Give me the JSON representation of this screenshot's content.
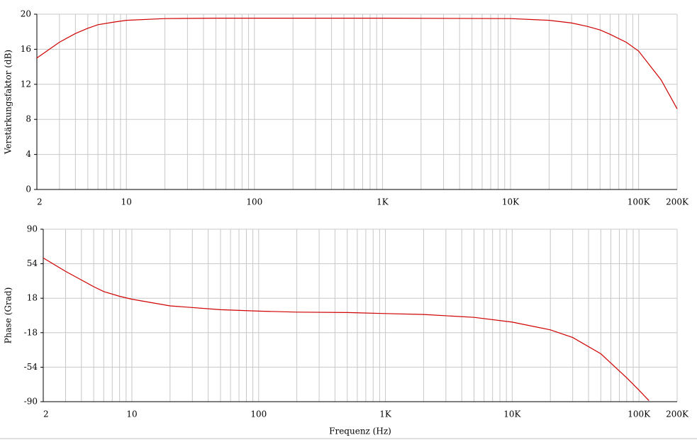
{
  "chart_data": [
    {
      "type": "line",
      "ylabel": "Verstärkungsfaktor (dB)",
      "xscale": "log",
      "grid": true,
      "color": "#d00000",
      "x": [
        2,
        3,
        4,
        5,
        6,
        8,
        10,
        20,
        50,
        100,
        1000,
        10000,
        20000,
        30000,
        40000,
        50000,
        60000,
        80000,
        100000,
        150000,
        200000
      ],
      "values": [
        15.0,
        16.8,
        17.8,
        18.4,
        18.8,
        19.1,
        19.3,
        19.5,
        19.55,
        19.55,
        19.55,
        19.5,
        19.3,
        19.0,
        18.6,
        18.2,
        17.7,
        16.8,
        15.8,
        12.5,
        9.2
      ],
      "xlim": [
        2,
        200000
      ],
      "ylim": [
        0,
        20
      ],
      "xticks": [
        2,
        10,
        100,
        {
          "value": 1000,
          "label": "1K"
        },
        {
          "value": 10000,
          "label": "10K"
        },
        {
          "value": 100000,
          "label": "100K"
        },
        {
          "value": 200000,
          "label": "200K"
        }
      ],
      "minor_xticks": [
        3,
        4,
        5,
        6,
        7,
        8,
        9,
        20,
        30,
        40,
        50,
        60,
        70,
        80,
        90,
        200,
        300,
        400,
        500,
        600,
        700,
        800,
        900,
        2000,
        3000,
        4000,
        5000,
        6000,
        7000,
        8000,
        9000,
        20000,
        30000,
        40000,
        50000,
        60000,
        70000,
        80000,
        90000
      ],
      "yticks": [
        0,
        4,
        8,
        12,
        16,
        20
      ]
    },
    {
      "type": "line",
      "ylabel": "Phase (Grad)",
      "xlabel": "Frequenz (Hz)",
      "xscale": "log",
      "grid": true,
      "color": "#d00000",
      "x": [
        2,
        3,
        4,
        5,
        6,
        8,
        10,
        20,
        50,
        100,
        200,
        500,
        1000,
        2000,
        5000,
        10000,
        20000,
        30000,
        50000,
        80000,
        100000,
        120000
      ],
      "values": [
        60,
        46,
        37,
        30,
        25,
        20,
        17,
        10,
        6,
        4.5,
        3.5,
        3,
        2,
        1,
        -2,
        -7,
        -15,
        -23,
        -40,
        -65,
        -78,
        -89
      ],
      "xlim": [
        2,
        200000
      ],
      "ylim": [
        -90,
        90
      ],
      "xticks": [
        2,
        10,
        100,
        {
          "value": 1000,
          "label": "1K"
        },
        {
          "value": 10000,
          "label": "10K"
        },
        {
          "value": 100000,
          "label": "100K"
        },
        {
          "value": 200000,
          "label": "200K"
        }
      ],
      "minor_xticks": [
        3,
        4,
        5,
        6,
        7,
        8,
        9,
        20,
        30,
        40,
        50,
        60,
        70,
        80,
        90,
        200,
        300,
        400,
        500,
        600,
        700,
        800,
        900,
        2000,
        3000,
        4000,
        5000,
        6000,
        7000,
        8000,
        9000,
        20000,
        30000,
        40000,
        50000,
        60000,
        70000,
        80000,
        90000
      ],
      "yticks": [
        -90,
        -54,
        -18,
        18,
        54,
        90
      ]
    }
  ]
}
